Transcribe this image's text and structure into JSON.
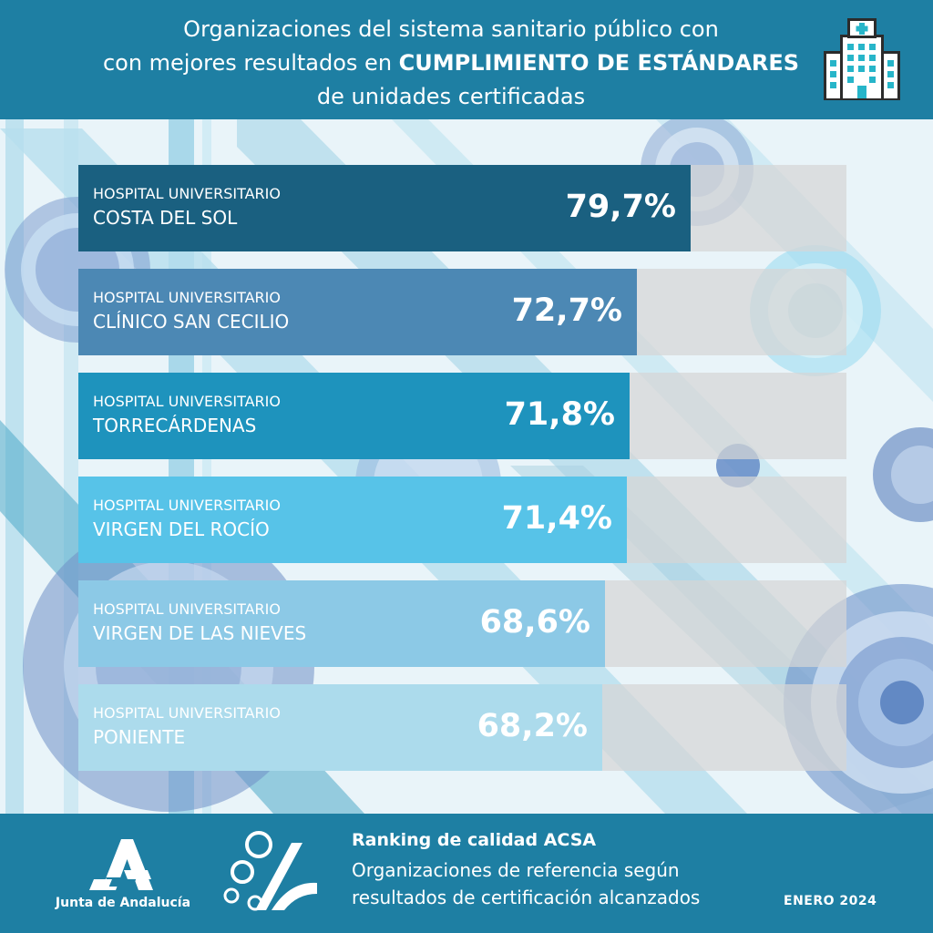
{
  "header": {
    "title_line1": "Organizaciones del sistema sanitario público con",
    "title_line2_prefix": "con mejores resultados en ",
    "title_line2_bold": "CUMPLIMIENTO DE ESTÁNDARES",
    "title_line3": "de unidades certificadas",
    "icon": "hospital-building-icon"
  },
  "chart_data": {
    "type": "bar",
    "orientation": "horizontal",
    "category_prefix": "HOSPITAL UNIVERSITARIO",
    "categories": [
      "COSTA DEL SOL",
      "CLÍNICO SAN CECILIO",
      "TORRECÁRDENAS",
      "VIRGEN DEL ROCÍO",
      "VIRGEN DE LAS NIEVES",
      "PONIENTE"
    ],
    "values": [
      79.7,
      72.7,
      71.8,
      71.4,
      68.6,
      68.2
    ],
    "value_labels": [
      "79,7%",
      "72,7%",
      "71,8%",
      "71,4%",
      "68,6%",
      "68,2%"
    ],
    "colors": [
      "#1a6080",
      "#4c88b4",
      "#1e93bd",
      "#57c3e8",
      "#8cc9e6",
      "#acdbec"
    ],
    "xlim": [
      0,
      100
    ],
    "grid": false
  },
  "footer": {
    "org_name": "Junta de Andalucía",
    "title": "Ranking de calidad ACSA",
    "subtitle_line1": "Organizaciones de referencia según",
    "subtitle_line2": "resultados de certificación alcanzados",
    "date": "ENERO  2024"
  },
  "colors": {
    "header_bg": "#1e7fa3",
    "footer_bg": "#1e7fa3",
    "track": "#d6d6d6"
  }
}
